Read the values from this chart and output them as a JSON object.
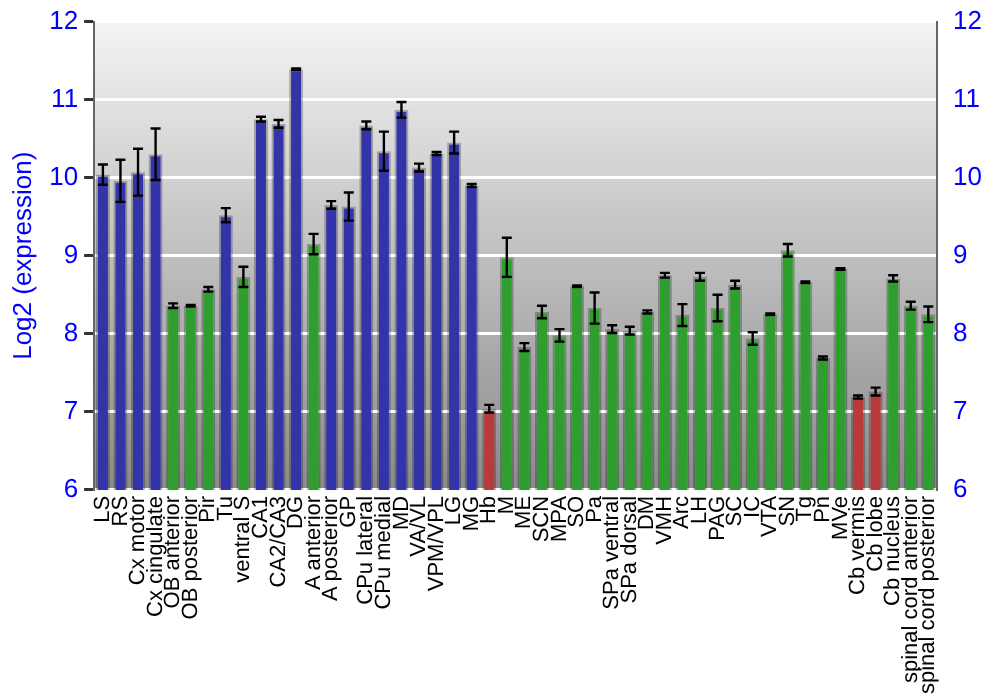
{
  "chart_data": {
    "type": "bar",
    "ylabel": "Log2 (expression)",
    "categories": [
      "LS",
      "RS",
      "Cx motor",
      "Cx cingulate",
      "OB anterior",
      "OB posterior",
      "Pir",
      "Tu",
      "ventral S",
      "CA1",
      "CA2/CA3",
      "DG",
      "A anterior",
      "A posterior",
      "GP",
      "CPu lateral",
      "CPu medial",
      "MD",
      "VA/VL",
      "VPM/VPL",
      "LG",
      "MG",
      "Hb",
      "M",
      "ME",
      "SCN",
      "MPA",
      "SO",
      "Pa",
      "SPa ventral",
      "SPa dorsal",
      "DM",
      "VMH",
      "Arc",
      "LH",
      "PAG",
      "SC",
      "IC",
      "VTA",
      "SN",
      "Tg",
      "Pn",
      "MVe",
      "Cb vermis",
      "Cb lobe",
      "Cb nucleus",
      "spinal cord anterior",
      "spinal cord posterior"
    ],
    "values": [
      10.04,
      9.96,
      10.07,
      10.3,
      8.36,
      8.36,
      8.57,
      9.52,
      8.73,
      10.75,
      10.69,
      11.39,
      9.15,
      9.65,
      9.63,
      10.67,
      10.34,
      10.87,
      10.13,
      10.31,
      10.45,
      9.9,
      7.04,
      8.98,
      7.83,
      8.28,
      7.98,
      8.61,
      8.33,
      8.06,
      8.04,
      8.28,
      8.75,
      8.24,
      8.73,
      8.33,
      8.63,
      7.94,
      8.25,
      9.07,
      8.66,
      7.69,
      8.83,
      7.19,
      7.26,
      8.71,
      8.36,
      8.25
    ],
    "errors": [
      0.13,
      0.27,
      0.3,
      0.33,
      0.03,
      0.01,
      0.03,
      0.09,
      0.13,
      0.03,
      0.05,
      0.01,
      0.13,
      0.05,
      0.18,
      0.05,
      0.25,
      0.1,
      0.05,
      0.02,
      0.14,
      0.02,
      0.05,
      0.25,
      0.05,
      0.08,
      0.08,
      0.01,
      0.2,
      0.05,
      0.05,
      0.02,
      0.03,
      0.14,
      0.05,
      0.17,
      0.05,
      0.08,
      0.01,
      0.08,
      0.01,
      0.02,
      0.01,
      0.02,
      0.05,
      0.04,
      0.05,
      0.1
    ],
    "colors": [
      "#3333aa",
      "#3333aa",
      "#3333aa",
      "#3333aa",
      "#2e9e2e",
      "#2e9e2e",
      "#2e9e2e",
      "#3333aa",
      "#2e9e2e",
      "#3333aa",
      "#3333aa",
      "#3333aa",
      "#2e9e2e",
      "#3333aa",
      "#3333aa",
      "#3333aa",
      "#3333aa",
      "#3333aa",
      "#3333aa",
      "#3333aa",
      "#3333aa",
      "#3333aa",
      "#b83a3a",
      "#2e9e2e",
      "#2e9e2e",
      "#2e9e2e",
      "#2e9e2e",
      "#2e9e2e",
      "#2e9e2e",
      "#2e9e2e",
      "#2e9e2e",
      "#2e9e2e",
      "#2e9e2e",
      "#2e9e2e",
      "#2e9e2e",
      "#2e9e2e",
      "#2e9e2e",
      "#2e9e2e",
      "#2e9e2e",
      "#2e9e2e",
      "#2e9e2e",
      "#2e9e2e",
      "#2e9e2e",
      "#b83a3a",
      "#b83a3a",
      "#2e9e2e",
      "#2e9e2e",
      "#2e9e2e"
    ],
    "ylim": [
      6,
      12
    ],
    "yticks": [
      6,
      7,
      8,
      9,
      10,
      11,
      12
    ],
    "y2lim": [
      6,
      12
    ],
    "y2ticks": [
      6,
      7,
      8,
      9,
      10,
      11,
      12
    ],
    "grid": "y",
    "legend": false
  }
}
